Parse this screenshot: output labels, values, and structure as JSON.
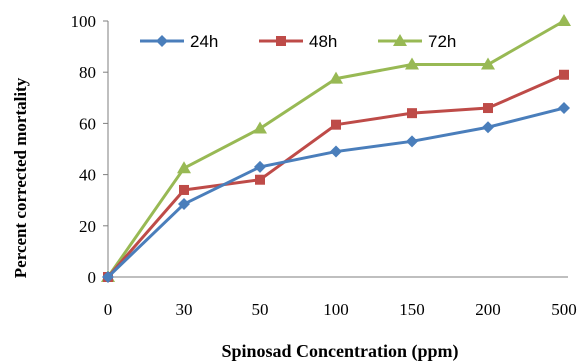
{
  "chart_data": {
    "type": "line",
    "title": "",
    "xlabel": "Spinosad Concentration (ppm)",
    "ylabel": "Percent corrected mortality",
    "categories": [
      "0",
      "30",
      "50",
      "100",
      "150",
      "200",
      "500"
    ],
    "yticks": [
      "0",
      "20",
      "40",
      "60",
      "80",
      "100"
    ],
    "ylim": [
      0,
      100
    ],
    "grid": false,
    "legend_position": "top",
    "series": [
      {
        "name": "24h",
        "color": "#4a7ebb",
        "marker": "diamond",
        "values": [
          0,
          28.5,
          43,
          49,
          53,
          58.5,
          66
        ]
      },
      {
        "name": "48h",
        "color": "#be4b48",
        "marker": "square",
        "values": [
          0,
          34,
          38,
          59.5,
          64,
          66,
          79
        ]
      },
      {
        "name": "72h",
        "color": "#98b954",
        "marker": "triangle",
        "values": [
          0,
          42.5,
          58,
          77.5,
          83,
          83,
          100
        ]
      }
    ]
  }
}
